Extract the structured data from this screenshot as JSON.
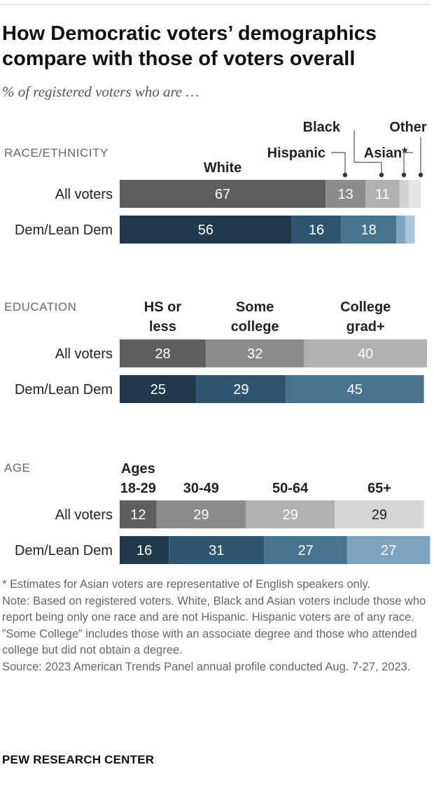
{
  "title": "How Democratic voters’ demographics compare with those of voters overall",
  "subtitle": "% of registered voters who are …",
  "chart_data": [
    {
      "type": "bar",
      "stacked": true,
      "orientation": "horizontal",
      "section_label": "RACE/ETHNICITY",
      "categories": [
        "All voters",
        "Dem/Lean Dem"
      ],
      "series": [
        {
          "name": "White",
          "values": [
            67,
            56
          ]
        },
        {
          "name": "Hispanic",
          "values": [
            13,
            16
          ]
        },
        {
          "name": "Black",
          "values": [
            11,
            18
          ]
        },
        {
          "name": "Asian*",
          "values": [
            3,
            3
          ]
        },
        {
          "name": "Other",
          "values": [
            4,
            3
          ]
        }
      ],
      "shown_values": [
        [
          "67",
          "13",
          "11",
          "",
          ""
        ],
        [
          "56",
          "16",
          "18",
          "",
          ""
        ]
      ],
      "colors": [
        [
          "#5e5e5e",
          "#8c8c8c",
          "#b1b1b1",
          "#d0d0d0",
          "#e6e6e6"
        ],
        [
          "#1f3a4d",
          "#2f5570",
          "#47738f",
          "#7da3bf",
          "#a9c6da"
        ]
      ],
      "xlim": [
        0,
        100
      ]
    },
    {
      "type": "bar",
      "stacked": true,
      "orientation": "horizontal",
      "section_label": "EDUCATION",
      "categories": [
        "All voters",
        "Dem/Lean Dem"
      ],
      "series": [
        {
          "name": "HS or less",
          "values": [
            28,
            25
          ]
        },
        {
          "name": "Some college",
          "values": [
            32,
            29
          ]
        },
        {
          "name": "College grad+",
          "values": [
            40,
            45
          ]
        }
      ],
      "shown_values": [
        [
          "28",
          "32",
          "40"
        ],
        [
          "25",
          "29",
          "45"
        ]
      ],
      "colors": [
        [
          "#5e5e5e",
          "#8c8c8c",
          "#b1b1b1"
        ],
        [
          "#1f3a4d",
          "#2f5570",
          "#47738f"
        ]
      ],
      "xlim": [
        0,
        100
      ]
    },
    {
      "type": "bar",
      "stacked": true,
      "orientation": "horizontal",
      "section_label": "AGE",
      "categories": [
        "All voters",
        "Dem/Lean Dem"
      ],
      "series": [
        {
          "name": "Ages 18-29",
          "values": [
            12,
            16
          ]
        },
        {
          "name": "30-49",
          "values": [
            29,
            31
          ]
        },
        {
          "name": "50-64",
          "values": [
            29,
            27
          ]
        },
        {
          "name": "65+",
          "values": [
            29,
            27
          ]
        }
      ],
      "shown_values": [
        [
          "12",
          "29",
          "29",
          "29"
        ],
        [
          "16",
          "31",
          "27",
          "27"
        ]
      ],
      "colors": [
        [
          "#5e5e5e",
          "#8c8c8c",
          "#b1b1b1",
          "#d6d6d6"
        ],
        [
          "#1f3a4d",
          "#2f5570",
          "#47738f",
          "#7da3bf"
        ]
      ],
      "xlim": [
        0,
        100
      ]
    }
  ],
  "footnotes": [
    "* Estimates for Asian voters are representative of English speakers only.",
    "Note: Based on registered voters. White, Black and Asian voters include those who report being only one race and are not Hispanic. Hispanic voters are of any race. ”Some College” includes those with an associate degree and those who attended college but did not obtain a degree.",
    "Source: 2023 American Trends Panel annual profile conducted Aug. 7-27, 2023."
  ],
  "brand": "PEW RESEARCH CENTER"
}
